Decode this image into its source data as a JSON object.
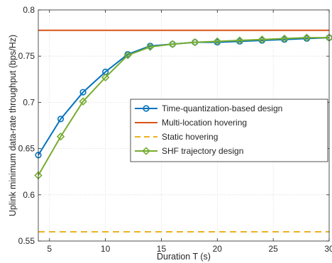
{
  "chart_data": {
    "type": "line",
    "xlabel": "Duration T (s)",
    "ylabel": "Uplink minimum data-rate throughput (bps/Hz)",
    "xlim": [
      4,
      30
    ],
    "ylim": [
      0.55,
      0.8
    ],
    "xticks": [
      5,
      10,
      15,
      20,
      25,
      30
    ],
    "yticks": [
      0.55,
      0.6,
      0.65,
      0.7,
      0.75,
      0.8
    ],
    "ytick_labels": [
      "0.55",
      "0.6",
      "0.65",
      "0.7",
      "0.75",
      "0.8"
    ],
    "xtick_labels": [
      "5",
      "10",
      "15",
      "20",
      "25",
      "30"
    ],
    "grid": true,
    "legend_position": "center-right",
    "series": [
      {
        "name": "Time-quantization-based design",
        "color": "#0072BD",
        "marker": "circle",
        "line_style": "solid",
        "x": [
          4,
          6,
          8,
          10,
          12,
          14,
          16,
          18,
          20,
          22,
          24,
          26,
          28,
          30
        ],
        "y": [
          0.643,
          0.682,
          0.711,
          0.733,
          0.752,
          0.761,
          0.763,
          0.765,
          0.765,
          0.766,
          0.767,
          0.768,
          0.769,
          0.77
        ]
      },
      {
        "name": "Multi-location hovering",
        "color": "#D95319",
        "marker": "none",
        "line_style": "solid",
        "x": [
          4,
          30
        ],
        "y": [
          0.778,
          0.778
        ]
      },
      {
        "name": "Static hovering",
        "color": "#EDB120",
        "marker": "none",
        "line_style": "dashed",
        "x": [
          4,
          30
        ],
        "y": [
          0.56,
          0.56
        ]
      },
      {
        "name": "SHF trajectory  design",
        "color": "#77AC30",
        "marker": "diamond",
        "line_style": "solid",
        "x": [
          4,
          6,
          8,
          10,
          12,
          14,
          16,
          18,
          20,
          22,
          24,
          26,
          28,
          30
        ],
        "y": [
          0.621,
          0.663,
          0.701,
          0.727,
          0.751,
          0.76,
          0.763,
          0.765,
          0.766,
          0.767,
          0.768,
          0.769,
          0.77,
          0.77
        ]
      }
    ]
  }
}
